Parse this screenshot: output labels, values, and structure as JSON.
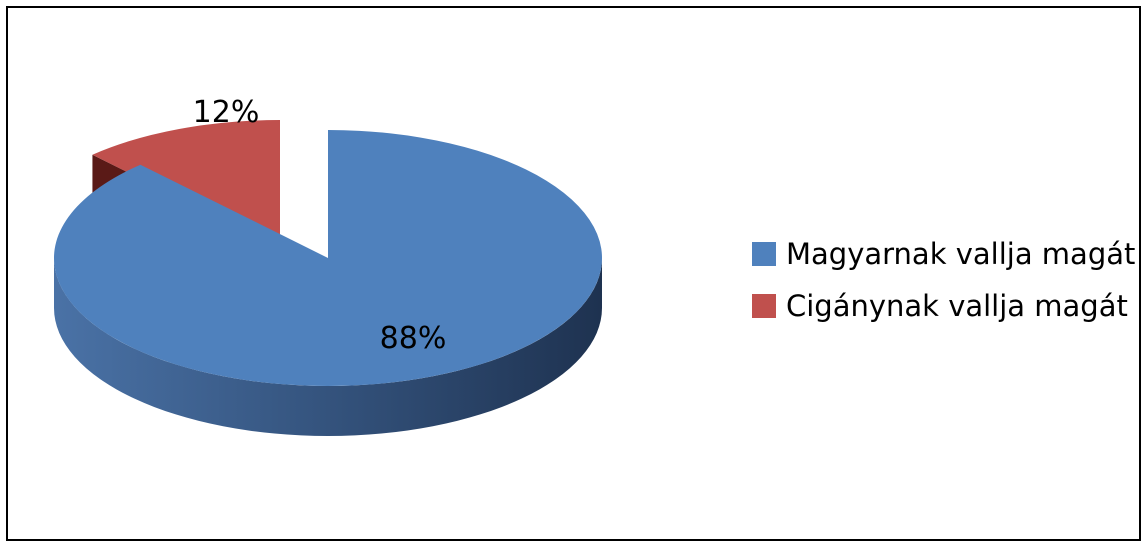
{
  "chart_data": {
    "type": "pie",
    "slices": [
      {
        "label": "Magyarnak vallja magát",
        "value": 88,
        "value_label": "88%",
        "color": "#4F81BD"
      },
      {
        "label": "Cigánynak vallja magát",
        "value": 12,
        "value_label": "12%",
        "color": "#C0504D"
      }
    ],
    "legend_position": "right",
    "three_d": true,
    "exploded_slice": "Cigánynak vallja magát"
  }
}
